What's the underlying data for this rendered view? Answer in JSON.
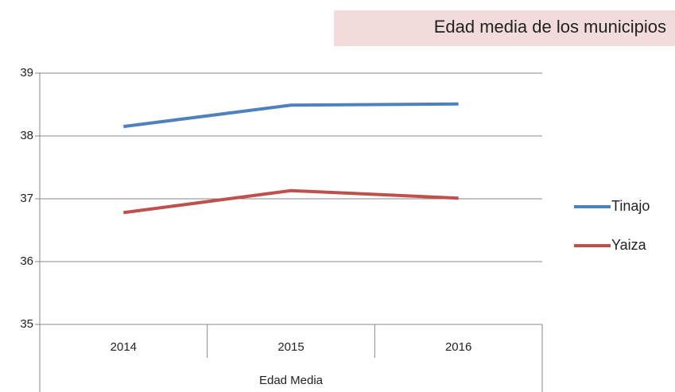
{
  "chart_data": {
    "type": "line",
    "title": "Edad media de los municipios",
    "categories": [
      "2014",
      "2015",
      "2016"
    ],
    "xlabel": "Edad Media",
    "series": [
      {
        "name": "Tinajo",
        "color": "#4f81bd",
        "values": [
          38.15,
          38.49,
          38.51
        ]
      },
      {
        "name": "Yaiza",
        "color": "#c0504d",
        "values": [
          36.78,
          37.13,
          37.01
        ]
      }
    ],
    "ylim": [
      35,
      39
    ],
    "yticks": [
      35,
      36,
      37,
      38,
      39
    ],
    "grid": true,
    "legend": "right"
  }
}
